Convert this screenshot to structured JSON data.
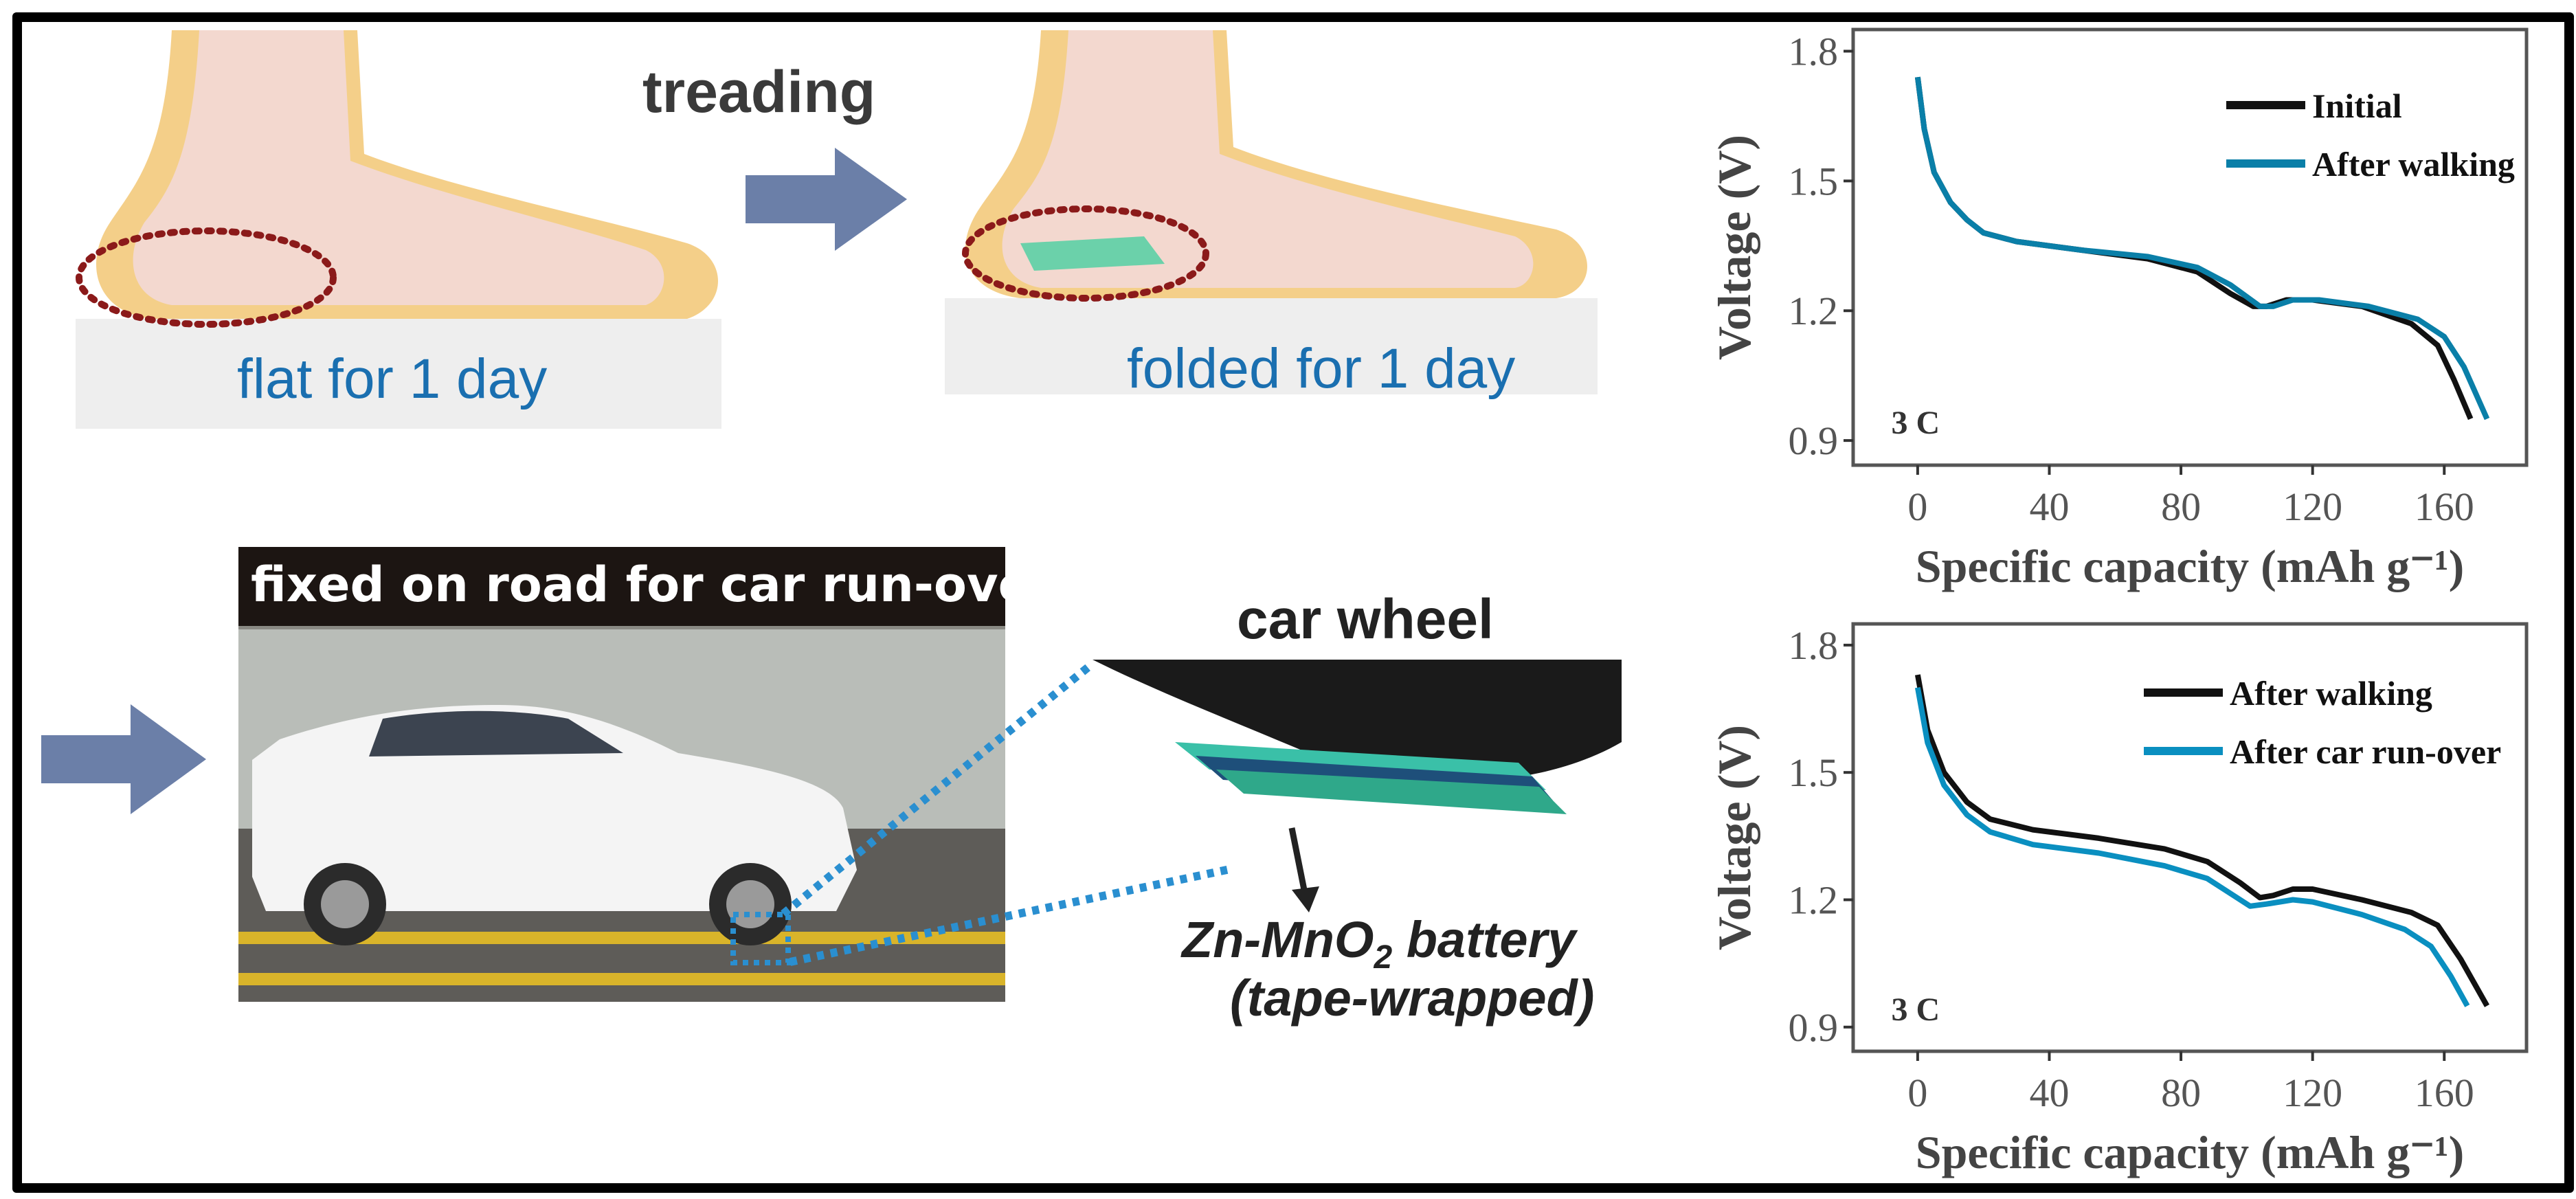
{
  "panels": {
    "treading_label": "treading",
    "flat_label": "flat for 1 day",
    "folded_label": "folded for 1 day",
    "road_banner": "fixed on road for car run-over",
    "wheel_label": "car wheel",
    "battery_label_line1": "Zn-MnO",
    "battery_label_sub": "2",
    "battery_label_rest": " battery",
    "battery_label_line2": "(tape-wrapped)"
  },
  "colors": {
    "accent_blue": "#1a6fb0",
    "arrow": "#6b7fa8",
    "dotted_circle": "#8b1a1a",
    "dotted_line": "#2a8fd0"
  },
  "chart_data": [
    {
      "type": "line",
      "xlabel": "Specific capacity (mAh g⁻¹)",
      "ylabel": "Voltage (V)",
      "annotation": "3 C",
      "xlim": [
        -19.6,
        185
      ],
      "ylim": [
        0.843,
        1.85
      ],
      "xticks": [
        0,
        40,
        80,
        120,
        160
      ],
      "xtick_labels": [
        "0",
        "40",
        "80",
        "120",
        "160"
      ],
      "yticks": [
        0.9,
        1.2,
        1.5,
        1.8
      ],
      "ytick_labels": [
        "0.9",
        "1.2",
        "1.5",
        "1.8"
      ],
      "legend_position": "top-right",
      "series": [
        {
          "name": "Initial",
          "color": "#111111",
          "x": [
            0,
            2,
            5,
            10,
            15,
            20,
            30,
            50,
            70,
            85,
            95,
            102,
            106,
            112,
            120,
            135,
            150,
            158,
            163,
            168
          ],
          "y": [
            1.74,
            1.62,
            1.52,
            1.45,
            1.41,
            1.38,
            1.36,
            1.34,
            1.32,
            1.29,
            1.24,
            1.21,
            1.21,
            1.225,
            1.225,
            1.21,
            1.17,
            1.12,
            1.04,
            0.95
          ]
        },
        {
          "name": "After walking",
          "color": "#0a7fa8",
          "x": [
            0,
            2,
            5,
            10,
            15,
            20,
            30,
            50,
            70,
            85,
            95,
            104,
            108,
            114,
            122,
            137,
            152,
            160,
            166,
            173
          ],
          "y": [
            1.74,
            1.62,
            1.52,
            1.45,
            1.41,
            1.38,
            1.36,
            1.34,
            1.325,
            1.3,
            1.26,
            1.21,
            1.21,
            1.225,
            1.225,
            1.21,
            1.18,
            1.14,
            1.07,
            0.95
          ]
        }
      ]
    },
    {
      "type": "line",
      "xlabel": "Specific capacity (mAh g⁻¹)",
      "ylabel": "Voltage (V)",
      "annotation": "3 C",
      "xlim": [
        -19.6,
        185
      ],
      "ylim": [
        0.843,
        1.85
      ],
      "xticks": [
        0,
        40,
        80,
        120,
        160
      ],
      "xtick_labels": [
        "0",
        "40",
        "80",
        "120",
        "160"
      ],
      "yticks": [
        0.9,
        1.2,
        1.5,
        1.8
      ],
      "ytick_labels": [
        "0.9",
        "1.2",
        "1.5",
        "1.8"
      ],
      "legend_position": "top-right",
      "series": [
        {
          "name": "After walking",
          "color": "#111111",
          "x": [
            0,
            3,
            8,
            15,
            22,
            35,
            55,
            75,
            88,
            98,
            104,
            108,
            114,
            120,
            135,
            150,
            158,
            165,
            173
          ],
          "y": [
            1.73,
            1.6,
            1.5,
            1.43,
            1.39,
            1.365,
            1.345,
            1.32,
            1.29,
            1.24,
            1.205,
            1.21,
            1.225,
            1.225,
            1.2,
            1.17,
            1.14,
            1.06,
            0.95
          ]
        },
        {
          "name": "After car run-over",
          "color": "#0a8fc0",
          "x": [
            0,
            3,
            8,
            15,
            22,
            35,
            55,
            75,
            88,
            96,
            101,
            106,
            114,
            120,
            135,
            148,
            156,
            162,
            167
          ],
          "y": [
            1.7,
            1.57,
            1.47,
            1.4,
            1.36,
            1.33,
            1.31,
            1.28,
            1.25,
            1.21,
            1.185,
            1.19,
            1.2,
            1.195,
            1.165,
            1.13,
            1.09,
            1.02,
            0.95
          ]
        }
      ]
    }
  ]
}
